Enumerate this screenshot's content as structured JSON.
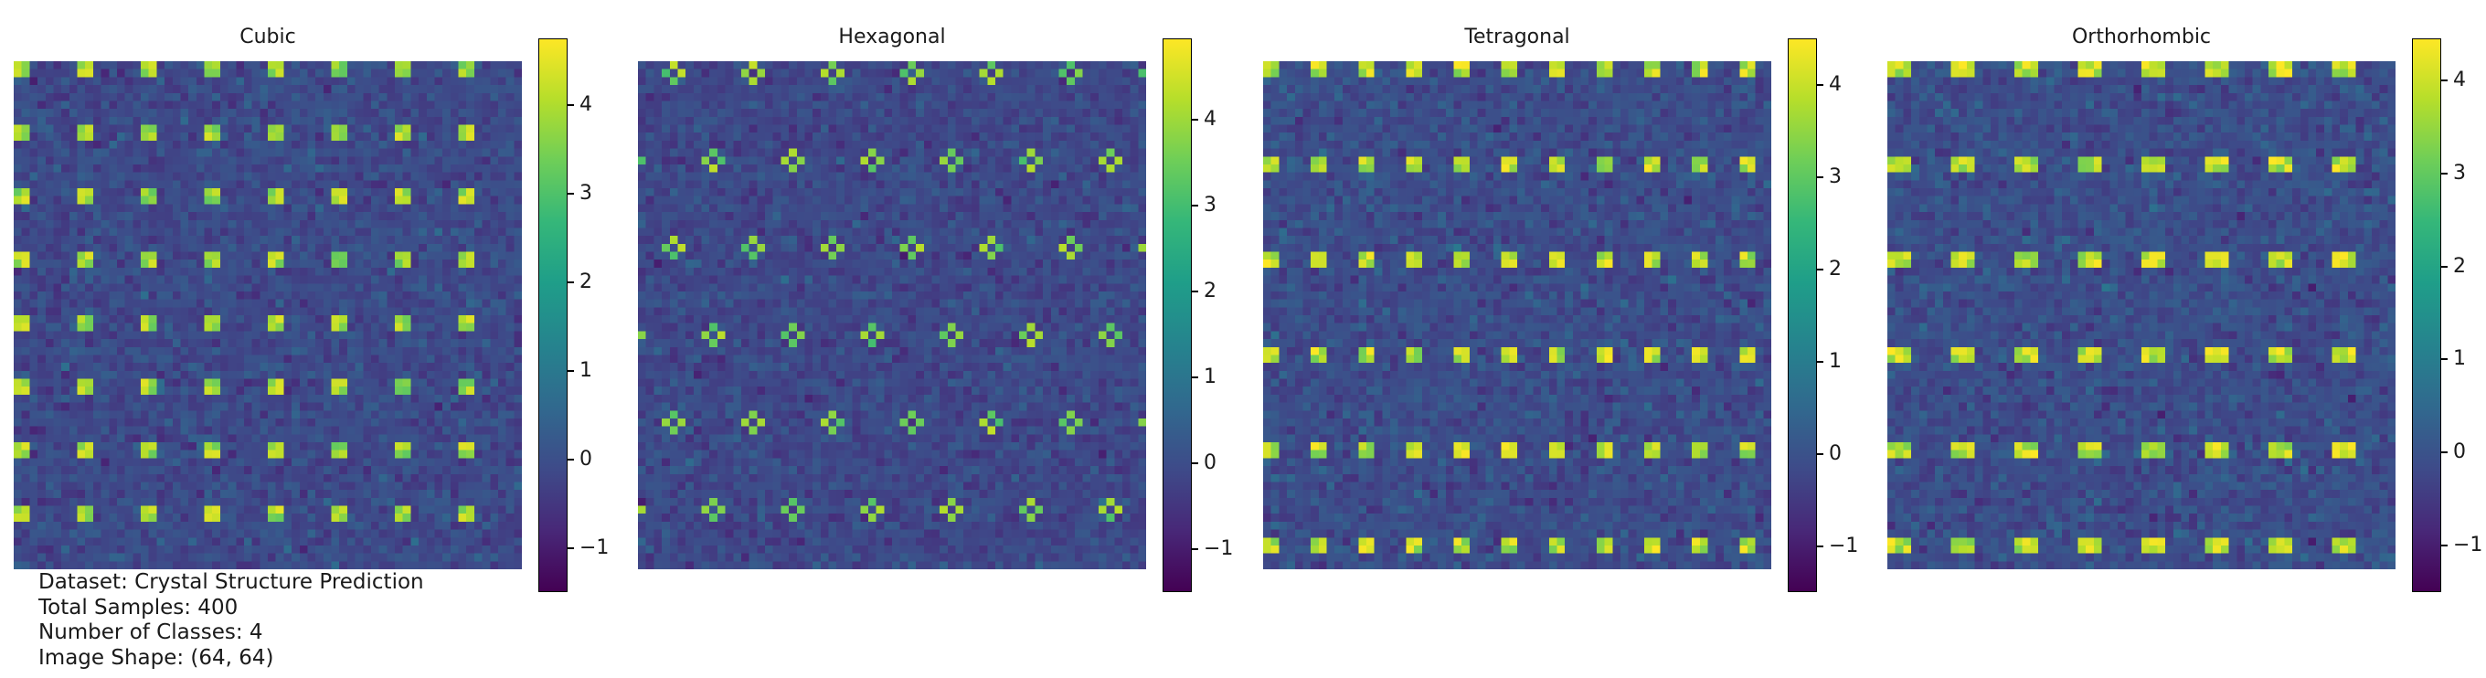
{
  "chart_data": [
    {
      "type": "heatmap",
      "title": "Cubic",
      "grid_size": [
        64,
        64
      ],
      "pattern": "square lattice of bright spots, period 8 in x and y",
      "colormap": "viridis",
      "colorbar": {
        "ticks": [
          "−1",
          "0",
          "1",
          "2",
          "3",
          "4"
        ],
        "tick_values": [
          -1,
          0,
          1,
          2,
          3,
          4
        ],
        "range": [
          -1.5,
          4.75
        ]
      },
      "spot_period": {
        "x": 8,
        "y": 8
      },
      "spot_size": {
        "x": 2,
        "y": 2
      }
    },
    {
      "type": "heatmap",
      "title": "Hexagonal",
      "grid_size": [
        64,
        64
      ],
      "pattern": "hexagonal arrangement of small cross-shaped spot clusters",
      "colormap": "viridis",
      "colorbar": {
        "ticks": [
          "−1",
          "0",
          "1",
          "2",
          "3",
          "4"
        ],
        "tick_values": [
          -1,
          0,
          1,
          2,
          3,
          4
        ],
        "range": [
          -1.5,
          4.95
        ]
      },
      "spot_period": {
        "x": 10,
        "y": 11
      },
      "spot_size": {
        "x": 1,
        "y": 1
      }
    },
    {
      "type": "heatmap",
      "title": "Tetragonal",
      "grid_size": [
        64,
        64
      ],
      "pattern": "rectangular lattice of bright spots, period 6 in x and 12 in y",
      "colormap": "viridis",
      "colorbar": {
        "ticks": [
          "−1",
          "0",
          "1",
          "2",
          "3",
          "4"
        ],
        "tick_values": [
          -1,
          0,
          1,
          2,
          3,
          4
        ],
        "range": [
          -1.5,
          4.5
        ]
      },
      "spot_period": {
        "x": 6,
        "y": 12
      },
      "spot_size": {
        "x": 2,
        "y": 2
      }
    },
    {
      "type": "heatmap",
      "title": "Orthorhombic",
      "grid_size": [
        64,
        64
      ],
      "pattern": "rectangular lattice of elongated bright spots, period 8 in x and 12 in y",
      "colormap": "viridis",
      "colorbar": {
        "ticks": [
          "−1",
          "0",
          "1",
          "2",
          "3",
          "4"
        ],
        "tick_values": [
          -1,
          0,
          1,
          2,
          3,
          4
        ],
        "range": [
          -1.5,
          4.45
        ]
      },
      "spot_period": {
        "x": 8,
        "y": 12
      },
      "spot_size": {
        "x": 3,
        "y": 2
      }
    }
  ],
  "info": {
    "dataset": "Dataset: Crystal Structure Prediction",
    "samples": "Total Samples: 400",
    "classes": "Number of Classes: 4",
    "shape": "Image Shape: (64, 64)"
  }
}
